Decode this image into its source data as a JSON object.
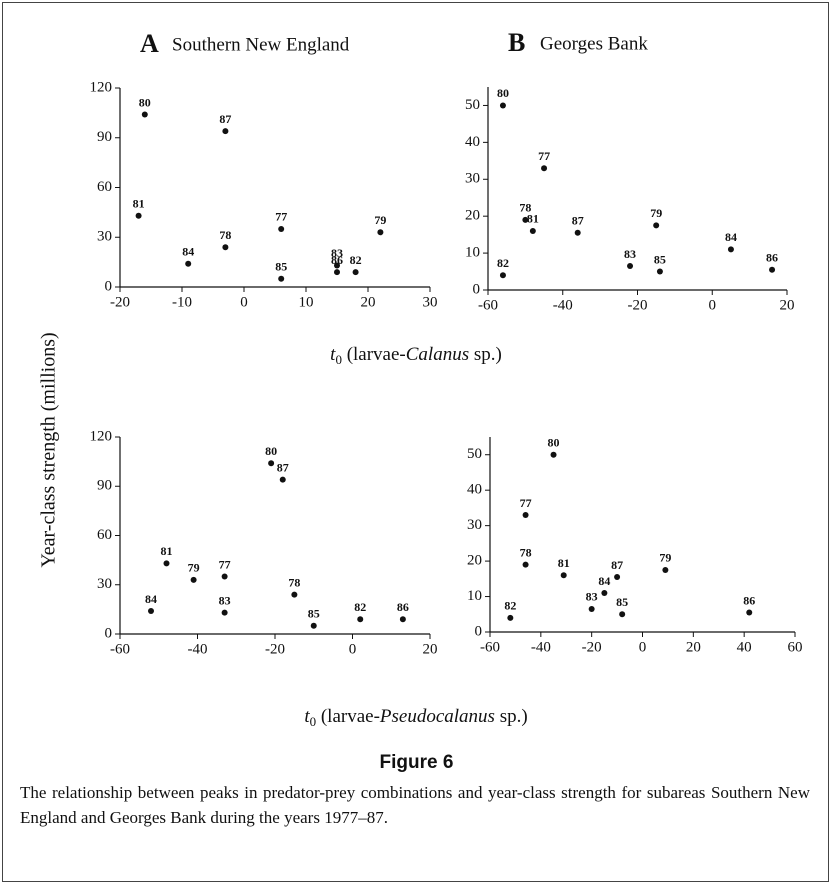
{
  "figure_title": "Figure 6",
  "caption": "The relationship between peaks in predator-prey combinations and year-class strength for subareas Southern New England and Georges Bank during the years 1977–87.",
  "y_label": "Year-class strength (millions)",
  "x_labels": [
    [
      "t",
      "0",
      " (larvae-",
      "Calanus",
      " sp.)"
    ],
    [
      "t",
      "0",
      " (larvae-",
      "Pseudocalanus",
      " sp.)"
    ]
  ],
  "chart_data": [
    {
      "type": "scatter",
      "title": "A",
      "subtitle": "Southern New England",
      "color": "#111111",
      "point_labels": [
        "80",
        "87",
        "81",
        "84",
        "78",
        "77",
        "85",
        "83",
        "86",
        "82",
        "79"
      ],
      "x": [
        -16,
        -3,
        -17,
        -9,
        -3,
        6,
        6,
        15,
        15,
        18,
        22
      ],
      "values": [
        104,
        94,
        43,
        14,
        24,
        35,
        5,
        13,
        9,
        9,
        33
      ],
      "xlim": [
        -20,
        30
      ],
      "xticks": [
        -20,
        -10,
        0,
        10,
        20,
        30
      ],
      "ylim": [
        0,
        120
      ],
      "yticks": [
        0,
        30,
        60,
        90,
        120
      ]
    },
    {
      "type": "scatter",
      "title": "B",
      "subtitle": "Georges Bank",
      "color": "#111111",
      "point_labels": [
        "80",
        "77",
        "78",
        "81",
        "87",
        "82",
        "83",
        "85",
        "79",
        "84",
        "86"
      ],
      "x": [
        -56,
        -45,
        -50,
        -48,
        -36,
        -56,
        -22,
        -14,
        -15,
        5,
        16
      ],
      "values": [
        50,
        33,
        19,
        16,
        15.5,
        4,
        6.5,
        5,
        17.5,
        11,
        5.5
      ],
      "xlim": [
        -60,
        20
      ],
      "xticks": [
        -60,
        -40,
        -20,
        0,
        20
      ],
      "ylim": [
        0,
        55
      ],
      "yticks": [
        0,
        10,
        20,
        30,
        40,
        50
      ]
    },
    {
      "type": "scatter",
      "color": "#111111",
      "point_labels": [
        "81",
        "79",
        "84",
        "77",
        "83",
        "80",
        "87",
        "78",
        "85",
        "82",
        "86"
      ],
      "x": [
        -48,
        -41,
        -52,
        -33,
        -33,
        -21,
        -18,
        -15,
        -10,
        2,
        13
      ],
      "values": [
        43,
        33,
        14,
        35,
        13,
        104,
        94,
        24,
        5,
        9,
        9
      ],
      "xlim": [
        -60,
        20
      ],
      "xticks": [
        -60,
        -40,
        -20,
        0,
        20
      ],
      "ylim": [
        0,
        120
      ],
      "yticks": [
        0,
        30,
        60,
        90,
        120
      ]
    },
    {
      "type": "scatter",
      "color": "#111111",
      "point_labels": [
        "80",
        "77",
        "78",
        "82",
        "81",
        "83",
        "84",
        "87",
        "85",
        "79",
        "86"
      ],
      "x": [
        -35,
        -46,
        -46,
        -52,
        -31,
        -20,
        -15,
        -10,
        -8,
        9,
        42
      ],
      "values": [
        50,
        33,
        19,
        4,
        16,
        6.5,
        11,
        15.5,
        5,
        17.5,
        5.5
      ],
      "xlim": [
        -60,
        60
      ],
      "xticks": [
        -60,
        -40,
        -20,
        0,
        20,
        40,
        60
      ],
      "ylim": [
        0,
        55
      ],
      "yticks": [
        0,
        10,
        20,
        30,
        40,
        50
      ]
    }
  ]
}
